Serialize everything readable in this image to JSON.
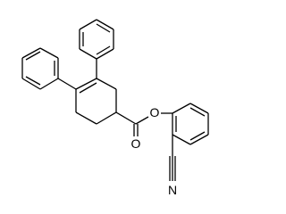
{
  "atoms": [
    {
      "label": "O"
    },
    {
      "label": "O"
    },
    {
      "label": "N"
    }
  ]
}
